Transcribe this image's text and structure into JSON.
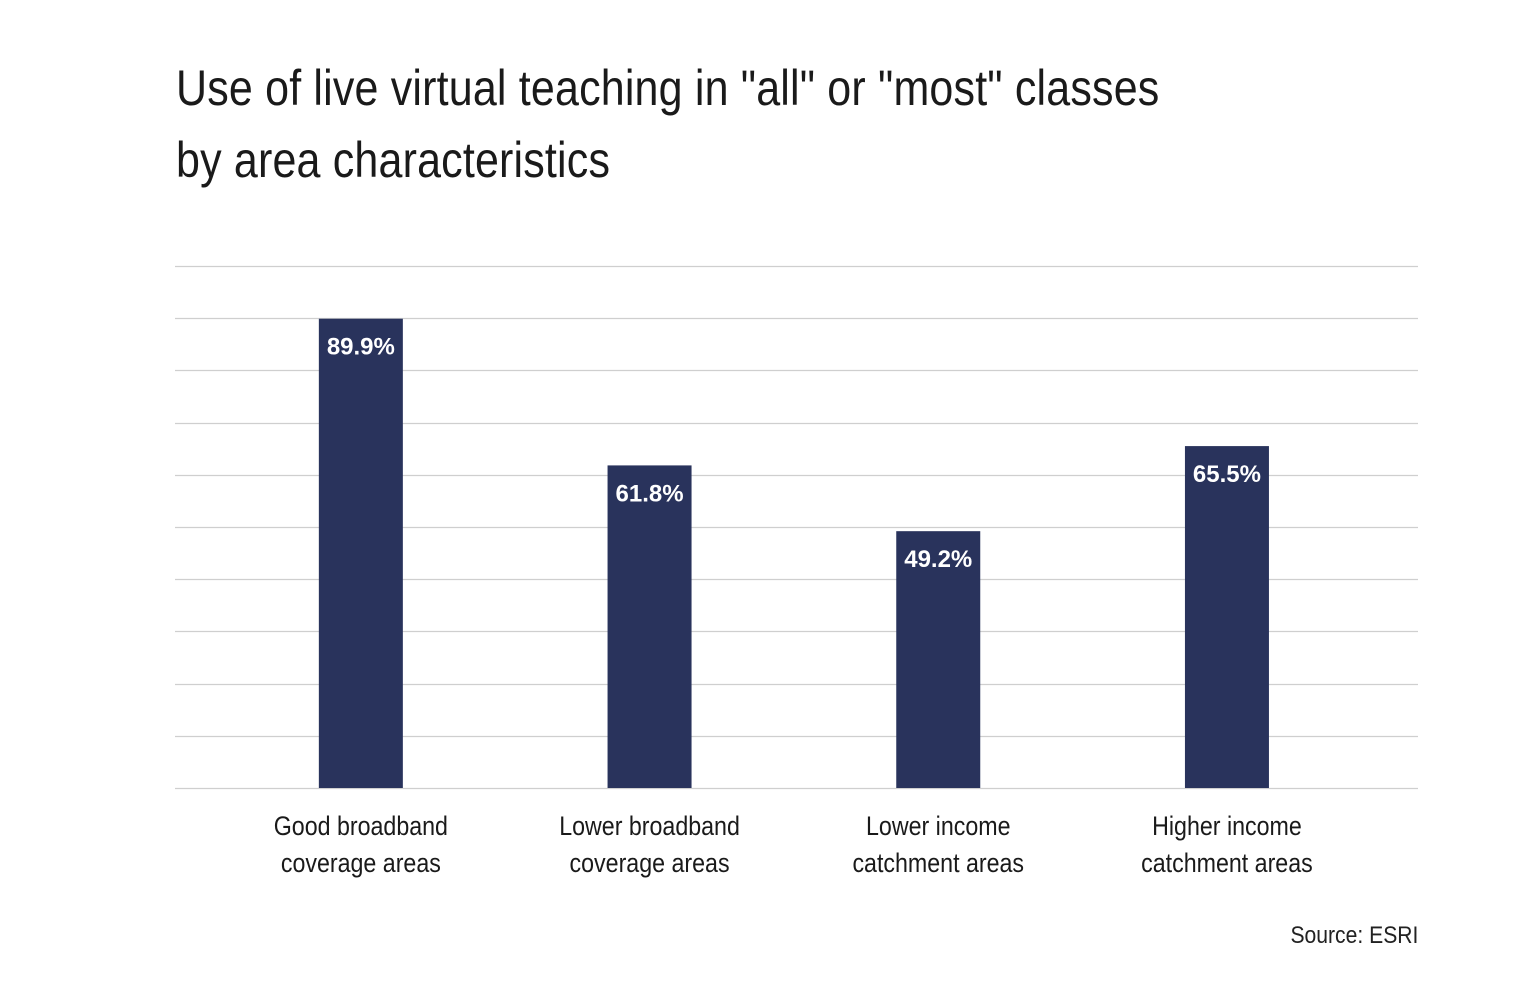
{
  "title": {
    "line1": "Use of live virtual teaching in \"all\" or \"most\" classes",
    "line2": "by area characteristics"
  },
  "source": "Source: ESRI",
  "colors": {
    "bar": "#29335c",
    "grid": "#cfcfcf",
    "label": "#ffffff",
    "text": "#1a1a1a"
  },
  "chart_data": {
    "type": "bar",
    "title": "Use of live virtual teaching in \"all\" or \"most\" classes by area characteristics",
    "xlabel": "",
    "ylabel": "",
    "ylim": [
      0,
      100
    ],
    "yticks": [
      0,
      10,
      20,
      30,
      40,
      50,
      60,
      70,
      80,
      90,
      100
    ],
    "grid": true,
    "categories": [
      [
        "Good broadband",
        "coverage areas"
      ],
      [
        "Lower broadband",
        "coverage areas"
      ],
      [
        "Lower income",
        "catchment areas"
      ],
      [
        "Higher income",
        "catchment areas"
      ]
    ],
    "values": [
      89.9,
      61.8,
      49.2,
      65.5
    ],
    "data_labels": [
      "89.9%",
      "61.8%",
      "49.2%",
      "65.5%"
    ],
    "source": "Source: ESRI"
  }
}
